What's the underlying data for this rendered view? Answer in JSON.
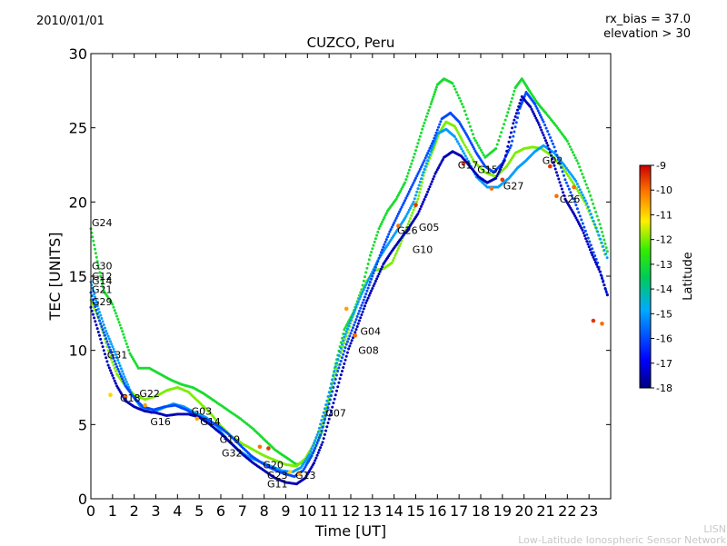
{
  "header": {
    "date": "2010/01/01",
    "rx_bias": "rx_bias = 37.0",
    "elevation": "elevation > 30"
  },
  "footer": {
    "org_short": "LISN",
    "org_full": "Low-Latitude Ionospheric Sensor Network"
  },
  "chart_data": {
    "type": "scatter",
    "title": "CUZCO, Peru",
    "xlabel": "Time [UT]",
    "ylabel": "TEC [UNITS]",
    "xlim": [
      0,
      24
    ],
    "ylim": [
      0,
      30
    ],
    "x_ticks": [
      "0",
      "1",
      "2",
      "3",
      "4",
      "5",
      "6",
      "7",
      "8",
      "9",
      "10",
      "11",
      "12",
      "13",
      "14",
      "15",
      "16",
      "17",
      "18",
      "19",
      "20",
      "21",
      "22",
      "23"
    ],
    "y_ticks": [
      "0",
      "5",
      "10",
      "15",
      "20",
      "25",
      "30"
    ],
    "colorbar": {
      "label": "Latitude",
      "range": [
        -18,
        -9
      ],
      "ticks": [
        "-9",
        "-10",
        "-11",
        "-12",
        "-13",
        "-14",
        "-15",
        "-16",
        "-17",
        "-18"
      ]
    },
    "satellite_labels": [
      {
        "name": "G24",
        "x": 0.0,
        "y": 18.6
      },
      {
        "name": "G30",
        "x": 0.0,
        "y": 15.7
      },
      {
        "name": "G12",
        "x": 0.0,
        "y": 15.0
      },
      {
        "name": "G14",
        "x": 0.0,
        "y": 14.7
      },
      {
        "name": "G21",
        "x": 0.0,
        "y": 14.1
      },
      {
        "name": "G29",
        "x": 0.0,
        "y": 13.3
      },
      {
        "name": "G31",
        "x": 0.7,
        "y": 9.7
      },
      {
        "name": "G18",
        "x": 1.3,
        "y": 6.8
      },
      {
        "name": "G22",
        "x": 2.2,
        "y": 7.1
      },
      {
        "name": "G16",
        "x": 2.7,
        "y": 5.2
      },
      {
        "name": "G03",
        "x": 4.6,
        "y": 5.9
      },
      {
        "name": "G14",
        "x": 5.0,
        "y": 5.2
      },
      {
        "name": "G19",
        "x": 5.9,
        "y": 4.0
      },
      {
        "name": "G32",
        "x": 6.0,
        "y": 3.1
      },
      {
        "name": "G20",
        "x": 7.9,
        "y": 2.3
      },
      {
        "name": "G23",
        "x": 8.1,
        "y": 1.6
      },
      {
        "name": "G11",
        "x": 8.1,
        "y": 1.0
      },
      {
        "name": "G13",
        "x": 9.4,
        "y": 1.6
      },
      {
        "name": "G07",
        "x": 10.8,
        "y": 5.8
      },
      {
        "name": "G08",
        "x": 12.3,
        "y": 10.0
      },
      {
        "name": "G04",
        "x": 12.4,
        "y": 11.3
      },
      {
        "name": "G26",
        "x": 14.1,
        "y": 18.1
      },
      {
        "name": "G05",
        "x": 15.1,
        "y": 18.3
      },
      {
        "name": "G10",
        "x": 14.8,
        "y": 16.8
      },
      {
        "name": "G17",
        "x": 16.9,
        "y": 22.5
      },
      {
        "name": "G15",
        "x": 17.8,
        "y": 22.2
      },
      {
        "name": "G27",
        "x": 19.0,
        "y": 21.1
      },
      {
        "name": "G02",
        "x": 20.8,
        "y": 22.8
      },
      {
        "name": "G26",
        "x": 21.6,
        "y": 20.2
      }
    ],
    "series": [
      {
        "lat": -13.0,
        "x": [
          0.0,
          0.3,
          0.6,
          1.0,
          1.4,
          1.8,
          2.2,
          2.7,
          3.2,
          3.7,
          4.2,
          4.7,
          5.2,
          5.7,
          6.3,
          6.9,
          7.5,
          8.0,
          8.5,
          9.0,
          9.5,
          9.9,
          10.3,
          10.7,
          11.0,
          11.3,
          11.7,
          12.1,
          12.5,
          12.9,
          13.3,
          13.7,
          14.1,
          14.5,
          14.9,
          15.3,
          15.7,
          16.0,
          16.3,
          16.7,
          17.2,
          17.7,
          18.2,
          18.7,
          19.2,
          19.6,
          19.9,
          20.2,
          20.6,
          21.0,
          21.5,
          22.0,
          22.5,
          23.0,
          23.5,
          23.9
        ],
        "y": [
          18.2,
          16.0,
          14.0,
          13.1,
          11.5,
          9.8,
          8.8,
          8.8,
          8.4,
          8.0,
          7.7,
          7.5,
          7.1,
          6.6,
          6.0,
          5.4,
          4.7,
          4.0,
          3.3,
          2.8,
          2.3,
          2.5,
          3.2,
          4.6,
          6.9,
          9.1,
          11.4,
          12.5,
          14.1,
          16.4,
          18.2,
          19.4,
          20.2,
          21.3,
          23.0,
          24.9,
          26.6,
          27.9,
          28.3,
          28.0,
          26.4,
          24.3,
          23.0,
          23.6,
          25.8,
          27.7,
          28.3,
          27.6,
          26.7,
          26.0,
          25.1,
          24.1,
          22.6,
          20.7,
          18.5,
          16.4
        ]
      },
      {
        "lat": -12.0,
        "x": [
          0.0,
          0.4,
          0.8,
          1.2,
          1.6,
          2.0,
          2.5,
          3.0,
          3.5,
          4.0,
          4.5,
          5.0,
          5.5,
          6.0,
          6.5,
          7.0,
          7.5,
          8.0,
          8.5,
          9.0,
          9.5,
          9.9,
          10.3,
          10.7,
          11.1,
          11.5,
          11.9,
          12.3,
          12.7,
          13.1,
          13.5,
          13.9,
          14.3,
          14.7,
          15.1,
          15.4,
          15.8,
          16.1,
          16.4,
          16.8,
          17.2,
          17.7,
          18.2,
          18.7,
          19.2,
          19.6,
          20.0,
          20.4,
          20.8,
          21.3,
          21.8,
          22.3,
          22.8,
          23.3,
          23.8
        ],
        "y": [
          13.4,
          12.0,
          10.0,
          8.4,
          7.6,
          7.0,
          6.7,
          6.9,
          7.3,
          7.5,
          7.2,
          6.5,
          5.8,
          4.9,
          4.2,
          3.7,
          3.3,
          2.9,
          2.6,
          2.3,
          2.2,
          2.7,
          3.7,
          5.1,
          7.3,
          9.6,
          11.4,
          13.1,
          14.6,
          15.4,
          15.5,
          15.9,
          17.2,
          18.7,
          20.2,
          22.0,
          23.5,
          24.7,
          25.4,
          25.1,
          24.0,
          22.7,
          22.0,
          21.7,
          22.4,
          23.3,
          23.6,
          23.7,
          23.6,
          23.1,
          22.3,
          21.2,
          20.0,
          18.3,
          16.2
        ]
      },
      {
        "lat": -15.0,
        "x": [
          0.0,
          0.3,
          0.7,
          1.1,
          1.5,
          1.9,
          2.3,
          2.8,
          3.3,
          3.8,
          4.3,
          4.8,
          5.3,
          5.8,
          6.3,
          6.8,
          7.3,
          7.8,
          8.3,
          8.8,
          9.3,
          9.7,
          10.1,
          10.5,
          10.9,
          11.3,
          11.7,
          12.1,
          12.5,
          12.9,
          13.3,
          13.7,
          14.1,
          14.5,
          14.9,
          15.3,
          15.7,
          16.0,
          16.4,
          16.8,
          17.3,
          17.8,
          18.3,
          18.8,
          19.3,
          19.7,
          20.1,
          20.5,
          20.9,
          21.4,
          21.9,
          22.4,
          22.9,
          23.4,
          23.9
        ],
        "y": [
          14.6,
          13.0,
          11.3,
          9.9,
          8.4,
          7.0,
          6.2,
          5.8,
          6.1,
          6.4,
          6.2,
          5.8,
          5.5,
          4.9,
          4.0,
          3.3,
          2.8,
          2.5,
          2.2,
          1.9,
          1.8,
          2.1,
          3.0,
          4.5,
          6.6,
          8.9,
          10.9,
          12.4,
          13.8,
          15.0,
          16.2,
          17.1,
          18.0,
          18.9,
          20.0,
          21.8,
          23.4,
          24.6,
          24.9,
          24.4,
          23.1,
          21.7,
          21.0,
          21.0,
          21.6,
          22.3,
          22.8,
          23.4,
          23.8,
          23.3,
          22.4,
          21.4,
          19.9,
          18.0,
          16.0
        ]
      },
      {
        "lat": -16.0,
        "x": [
          0.0,
          0.4,
          0.8,
          1.2,
          1.6,
          2.0,
          2.4,
          2.9,
          3.4,
          3.9,
          4.4,
          4.9,
          5.4,
          5.9,
          6.4,
          6.9,
          7.4,
          7.9,
          8.4,
          8.9,
          9.4,
          9.8,
          10.2,
          10.6,
          11.0,
          11.4,
          11.8,
          12.2,
          12.6,
          13.0,
          13.4,
          13.8,
          14.2,
          14.6,
          15.0,
          15.4,
          15.8,
          16.2,
          16.6,
          17.0,
          17.4,
          17.8,
          18.2,
          18.6,
          19.0,
          19.4,
          19.8,
          20.1,
          20.5,
          20.9,
          21.4,
          21.9,
          22.4,
          22.9,
          23.4,
          23.9
        ],
        "y": [
          13.9,
          12.0,
          10.4,
          8.9,
          7.6,
          6.8,
          6.2,
          6.0,
          6.2,
          6.3,
          6.0,
          5.6,
          5.3,
          4.9,
          4.3,
          3.6,
          2.9,
          2.4,
          2.0,
          1.7,
          1.5,
          1.9,
          2.9,
          4.3,
          6.4,
          8.6,
          10.4,
          11.9,
          13.4,
          15.0,
          16.6,
          18.0,
          19.2,
          20.4,
          21.6,
          22.8,
          24.1,
          25.6,
          26.0,
          25.4,
          24.4,
          23.3,
          22.4,
          22.0,
          22.6,
          23.8,
          26.3,
          27.4,
          26.6,
          25.4,
          23.7,
          21.5,
          19.8,
          17.8,
          15.9,
          13.5
        ]
      },
      {
        "lat": -17.5,
        "x": [
          0.0,
          0.4,
          0.8,
          1.2,
          1.6,
          2.0,
          2.5,
          3.0,
          3.5,
          4.0,
          4.5,
          5.0,
          5.5,
          6.0,
          6.5,
          7.0,
          7.5,
          8.0,
          8.5,
          9.0,
          9.5,
          9.9,
          10.3,
          10.7,
          11.1,
          11.5,
          11.9,
          12.3,
          12.7,
          13.1,
          13.5,
          13.9,
          14.3,
          14.7,
          15.1,
          15.5,
          15.9,
          16.3,
          16.7,
          17.1,
          17.5,
          17.9,
          18.3,
          18.7,
          19.1,
          19.5,
          19.9,
          20.3,
          20.7,
          21.1,
          21.5,
          21.9,
          22.3,
          22.7,
          23.1,
          23.5,
          23.9
        ],
        "y": [
          12.9,
          11.0,
          9.0,
          7.6,
          6.6,
          6.2,
          5.9,
          5.8,
          5.6,
          5.7,
          5.7,
          5.5,
          5.0,
          4.4,
          3.7,
          3.0,
          2.4,
          1.9,
          1.4,
          1.1,
          1.0,
          1.4,
          2.4,
          3.8,
          5.9,
          8.1,
          10.1,
          11.6,
          13.2,
          14.5,
          15.8,
          16.7,
          17.5,
          18.3,
          19.2,
          20.5,
          21.9,
          23.0,
          23.4,
          23.1,
          22.4,
          21.7,
          21.3,
          21.6,
          22.8,
          25.3,
          27.1,
          26.4,
          25.2,
          23.8,
          22.0,
          20.2,
          19.2,
          18.1,
          16.6,
          15.3,
          13.5
        ]
      }
    ],
    "highlight_points": [
      {
        "x": 0.9,
        "y": 7.0,
        "lat": -11.0
      },
      {
        "x": 1.6,
        "y": 6.9,
        "lat": -10.0
      },
      {
        "x": 2.5,
        "y": 6.3,
        "lat": -10.5
      },
      {
        "x": 4.9,
        "y": 5.4,
        "lat": -10.5
      },
      {
        "x": 7.8,
        "y": 3.5,
        "lat": -10.0
      },
      {
        "x": 8.2,
        "y": 3.4,
        "lat": -9.5
      },
      {
        "x": 9.2,
        "y": 1.8,
        "lat": -11.0
      },
      {
        "x": 9.6,
        "y": 1.7,
        "lat": -10.5
      },
      {
        "x": 11.8,
        "y": 12.8,
        "lat": -10.5
      },
      {
        "x": 12.2,
        "y": 11.0,
        "lat": -10.0
      },
      {
        "x": 14.2,
        "y": 18.4,
        "lat": -10.0
      },
      {
        "x": 15.0,
        "y": 19.8,
        "lat": -9.5
      },
      {
        "x": 17.2,
        "y": 22.6,
        "lat": -9.5
      },
      {
        "x": 18.5,
        "y": 20.9,
        "lat": -10.0
      },
      {
        "x": 19.0,
        "y": 21.5,
        "lat": -9.5
      },
      {
        "x": 21.2,
        "y": 22.4,
        "lat": -9.5
      },
      {
        "x": 21.5,
        "y": 20.4,
        "lat": -10.0
      },
      {
        "x": 22.3,
        "y": 21.0,
        "lat": -10.0
      },
      {
        "x": 23.2,
        "y": 12.0,
        "lat": -9.5
      },
      {
        "x": 23.6,
        "y": 11.8,
        "lat": -10.0
      }
    ]
  }
}
